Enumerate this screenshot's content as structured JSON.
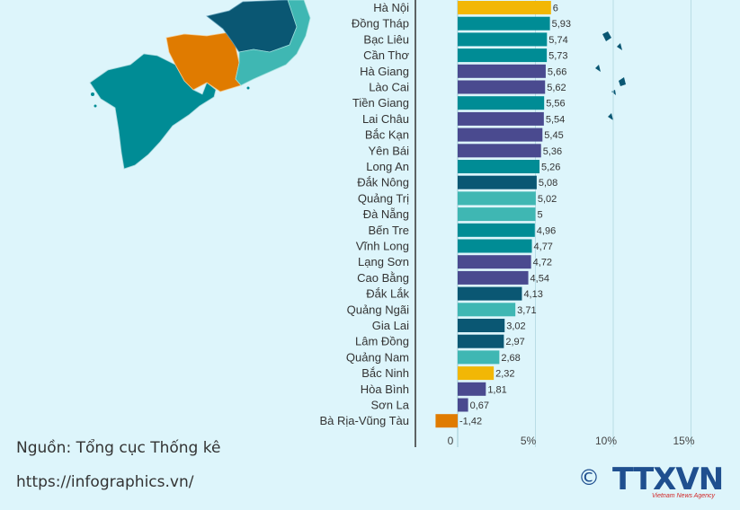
{
  "source": "Nguồn: Tổng cục Thống kê",
  "url": "https://infographics.vn/",
  "logo": {
    "copyright": "©",
    "name": "TTXVN",
    "sub": "Vietnam News Agency"
  },
  "colors": {
    "background": "#ddf5fb",
    "yellow": "#f2b705",
    "teal": "#008c95",
    "indigo": "#4a4a8f",
    "darkblue": "#0a5773",
    "lightteal": "#3fb7b3",
    "orange": "#e07b00"
  },
  "chart_data": {
    "type": "bar",
    "orientation": "horizontal",
    "title": "",
    "xlabel": "",
    "ylabel": "",
    "xlim": [
      -2,
      15
    ],
    "x_ticks": [
      "0",
      "5%",
      "10%",
      "15%"
    ],
    "x_tick_values": [
      0,
      5,
      10,
      15
    ],
    "grid": true,
    "categories": [
      "Hà Nội",
      "Đồng Tháp",
      "Bạc Liêu",
      "Cần Thơ",
      "Hà Giang",
      "Lào Cai",
      "Tiền Giang",
      "Lai Châu",
      "Bắc Kạn",
      "Yên Bái",
      "Long An",
      "Đắk Nông",
      "Quảng Trị",
      "Đà Nẵng",
      "Bến Tre",
      "Vĩnh Long",
      "Lạng Sơn",
      "Cao Bằng",
      "Đắk Lắk",
      "Quảng Ngãi",
      "Gia Lai",
      "Lâm Đồng",
      "Quảng Nam",
      "Bắc Ninh",
      "Hòa Bình",
      "Sơn La",
      "Bà Rịa-Vũng Tàu"
    ],
    "values": [
      6,
      5.93,
      5.74,
      5.73,
      5.66,
      5.62,
      5.56,
      5.54,
      5.45,
      5.36,
      5.26,
      5.08,
      5.02,
      5,
      4.96,
      4.77,
      4.72,
      4.54,
      4.13,
      3.71,
      3.02,
      2.97,
      2.68,
      2.32,
      1.81,
      0.67,
      -1.42
    ],
    "value_labels": [
      "6",
      "5,93",
      "5,74",
      "5,73",
      "5,66",
      "5,62",
      "5,56",
      "5,54",
      "5,45",
      "5,36",
      "5,26",
      "5,08",
      "5,02",
      "5",
      "4,96",
      "4,77",
      "4,72",
      "4,54",
      "4,13",
      "3,71",
      "3,02",
      "2,97",
      "2,68",
      "2,32",
      "1,81",
      "0,67",
      "-1,42"
    ],
    "bar_colors": [
      "#f2b705",
      "#008c95",
      "#008c95",
      "#008c95",
      "#4a4a8f",
      "#4a4a8f",
      "#008c95",
      "#4a4a8f",
      "#4a4a8f",
      "#4a4a8f",
      "#008c95",
      "#0a5773",
      "#3fb7b3",
      "#3fb7b3",
      "#008c95",
      "#008c95",
      "#4a4a8f",
      "#4a4a8f",
      "#0a5773",
      "#3fb7b3",
      "#0a5773",
      "#0a5773",
      "#3fb7b3",
      "#f2b705",
      "#4a4a8f",
      "#4a4a8f",
      "#e07b00"
    ]
  }
}
